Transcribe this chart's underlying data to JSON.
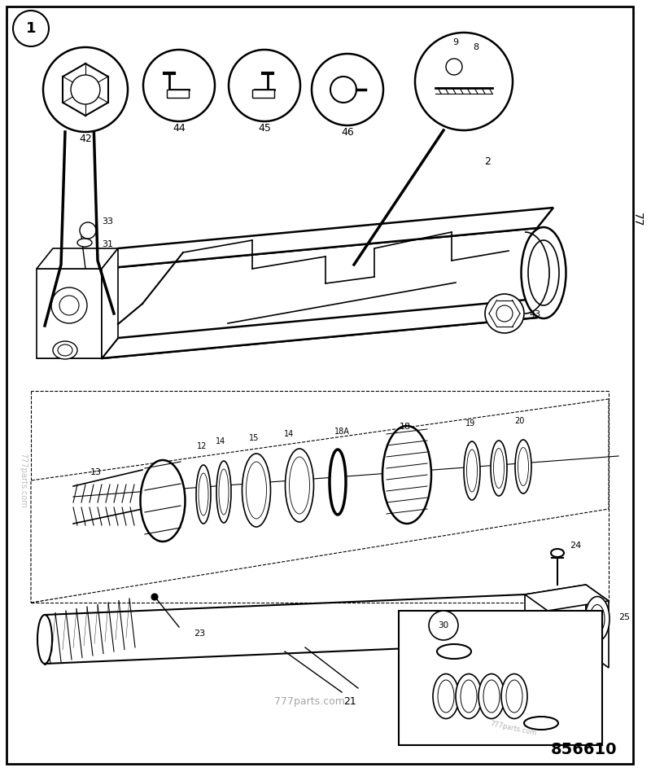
{
  "bg_color": "#ffffff",
  "border_color": "#000000",
  "part_number": "856610",
  "website_center": "777parts.com",
  "website_br": "777parts.com",
  "fig_number": "1",
  "side_label": "77"
}
